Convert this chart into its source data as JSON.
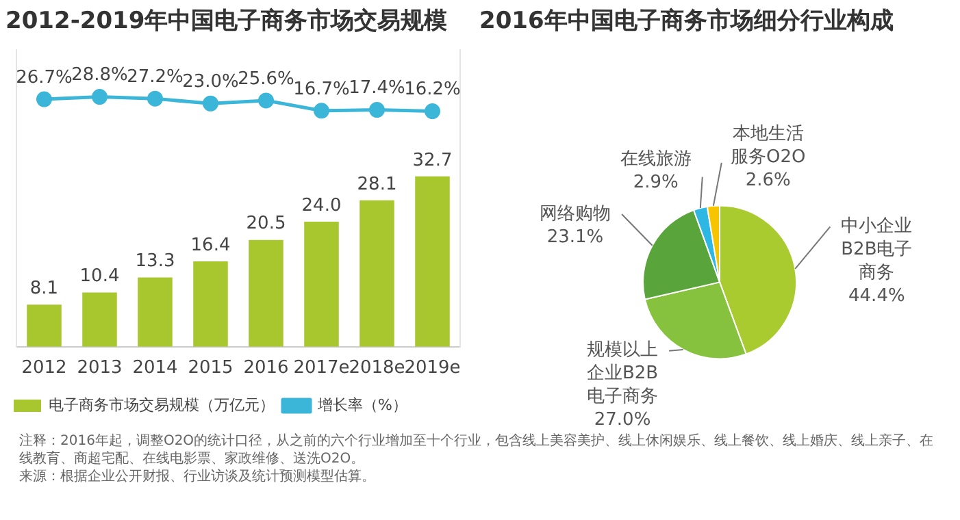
{
  "chart_data": [
    {
      "type": "bar",
      "title": "2012-2019年中国电子商务市场交易规模",
      "categories": [
        "2012",
        "2013",
        "2014",
        "2015",
        "2016",
        "2017e",
        "2018e",
        "2019e"
      ],
      "series": [
        {
          "name": "电子商务市场交易规模（万亿元）",
          "type": "bar",
          "color": "#a8c62d",
          "values": [
            8.1,
            10.4,
            13.3,
            16.4,
            20.5,
            24.0,
            28.1,
            32.7
          ],
          "value_labels": [
            "8.1",
            "10.4",
            "13.3",
            "16.4",
            "20.5",
            "24.0",
            "28.1",
            "32.7"
          ]
        },
        {
          "name": "增长率（%）",
          "type": "line",
          "axis": "y2",
          "color": "#3bb5d8",
          "marker": "circle",
          "values": [
            26.7,
            28.8,
            27.2,
            23.0,
            25.6,
            16.7,
            17.4,
            16.2
          ],
          "value_labels": [
            "26.7%",
            "28.8%",
            "27.2%",
            "23.0%",
            "25.6%",
            "16.7%",
            "17.4%",
            "16.2%"
          ]
        }
      ],
      "ylim": [
        0,
        57
      ],
      "y2lim": [
        -190,
        70
      ],
      "tick_labels": "x",
      "grid": false,
      "legend": "bottom",
      "annotations": [
        "注释：2016年起，调整O2O的统计口径，从之前的六个行业增加至十个行业，包含线上美容美护、线上休闲娱乐、线上餐饮、线上婚庆、线上亲子、在线教育、商超宅配、在线电影票、家政维修、送洗O2O。",
        "来源：根据企业公开财报、行业访谈及统计预测模型估算。"
      ]
    },
    {
      "type": "pie",
      "title": "2016年中国电子商务市场细分行业构成",
      "categories": [
        "中小企业B2B电子商务",
        "规模以上企业B2B电子商务",
        "网络购物",
        "在线旅游",
        "本地生活服务O2O"
      ],
      "values": [
        44.4,
        27.0,
        23.1,
        2.9,
        2.6
      ],
      "value_labels": [
        "44.4%",
        "27.0%",
        "23.1%",
        "2.9%",
        "2.6%"
      ],
      "colors": [
        "#aacb2f",
        "#86c23e",
        "#5aa53b",
        "#2fb7e3",
        "#f6c500"
      ]
    }
  ]
}
